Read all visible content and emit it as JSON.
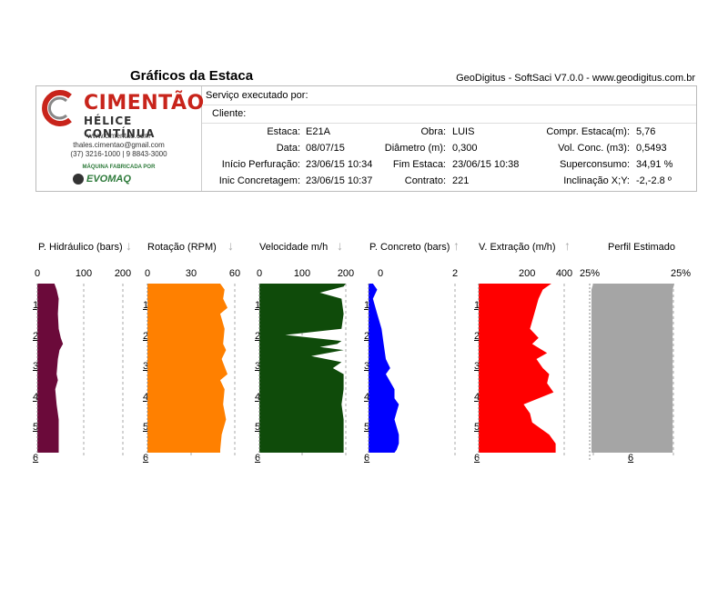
{
  "page_title": "Gráficos da Estaca",
  "software": "GeoDigitus - SoftSaci V7.0.0 - www.geodigitus.com.br",
  "logo": {
    "name": "CIMENTÃO",
    "subtitle": "HÉLICE CONTÍNUA",
    "site": "www.cimentao.com",
    "email": "thales.cimentao@gmail.com",
    "phone": "(37) 3216-1000 | 9 8843-3000",
    "maker": "MÁQUINA FABRICADA POR",
    "maker_brand": "EVOMAQ"
  },
  "header": {
    "servico_label": "Serviço executado por:",
    "cliente_label": "Cliente:",
    "estaca_label": "Estaca:",
    "estaca": "E21A",
    "obra_label": "Obra:",
    "obra": "LUIS",
    "compr_label": "Compr. Estaca(m):",
    "compr": "5,76",
    "data_label": "Data:",
    "data": "08/07/15",
    "diametro_label": "Diâmetro (m):",
    "diametro": "0,300",
    "volconc_label": "Vol. Conc. (m3):",
    "volconc": "0,5493",
    "inicio_perf_label": "Início Perfuração:",
    "inicio_perf": "23/06/15 10:34",
    "fim_label": "Fim Estaca:",
    "fim": "23/06/15 10:38",
    "superconsumo_label": "Superconsumo:",
    "superconsumo": "34,91 %",
    "inic_conc_label": "Inic Concretagem:",
    "inic_conc": "23/06/15 10:37",
    "contrato_label": "Contrato:",
    "contrato": "221",
    "inclinacao_label": "Inclinação X;Y:",
    "inclinacao": "-2,-2.8 º"
  },
  "chart_data": [
    {
      "type": "area",
      "title": "P. Hidráulico (bars)",
      "arrow": "down",
      "color": "#6b0a3a",
      "xlim": [
        0,
        200
      ],
      "ticks": [
        "0",
        "100",
        "200"
      ],
      "ylim": [
        0,
        6
      ],
      "depth": [
        0,
        0.2,
        0.5,
        1.0,
        1.5,
        1.8,
        2.0,
        2.2,
        2.5,
        3.0,
        3.2,
        3.5,
        4.0,
        4.5,
        5.0,
        5.5,
        5.6
      ],
      "values": [
        40,
        45,
        50,
        48,
        50,
        55,
        60,
        52,
        48,
        45,
        48,
        42,
        45,
        50,
        50,
        50,
        50
      ]
    },
    {
      "type": "area",
      "title": "Rotação (RPM)",
      "arrow": "down",
      "color": "#ff8000",
      "xlim": [
        0,
        60
      ],
      "ticks": [
        "0",
        "30",
        "60"
      ],
      "ylim": [
        0,
        6
      ],
      "depth": [
        0,
        0.2,
        0.5,
        0.8,
        1.0,
        1.5,
        2.0,
        2.2,
        2.5,
        3.0,
        3.2,
        3.5,
        4.0,
        4.5,
        5.0,
        5.5,
        5.6
      ],
      "values": [
        50,
        53,
        52,
        55,
        50,
        53,
        52,
        54,
        51,
        55,
        50,
        53,
        52,
        54,
        51,
        50,
        50
      ]
    },
    {
      "type": "area",
      "title": "Velocidade m/h",
      "arrow": "down",
      "color": "#0f4b0a",
      "xlim": [
        0,
        200
      ],
      "ticks": [
        "0",
        "100",
        "200"
      ],
      "ylim": [
        0,
        6
      ],
      "depth": [
        0,
        0.1,
        0.3,
        0.5,
        1.0,
        1.5,
        1.7,
        1.9,
        2.0,
        2.1,
        2.2,
        2.4,
        2.6,
        2.8,
        3.0,
        3.5,
        4.0,
        4.5,
        5.0,
        5.5,
        5.6
      ],
      "values": [
        200,
        195,
        140,
        190,
        195,
        190,
        60,
        190,
        180,
        140,
        195,
        120,
        190,
        170,
        195,
        195,
        190,
        195,
        195,
        195,
        195
      ]
    },
    {
      "type": "area",
      "title": "P. Concreto (bars)",
      "arrow": "up",
      "color": "#0000ff",
      "xlim": [
        0,
        2
      ],
      "ticks": [
        "0",
        "2"
      ],
      "ylim": [
        0,
        6
      ],
      "depth": [
        0,
        0.2,
        0.5,
        1.0,
        1.5,
        2.0,
        2.5,
        2.8,
        3.0,
        3.5,
        3.8,
        4.0,
        4.5,
        5.0,
        5.3,
        5.5,
        5.6
      ],
      "values": [
        0.1,
        0.2,
        0.1,
        0.2,
        0.3,
        0.35,
        0.4,
        0.5,
        0.4,
        0.6,
        0.6,
        0.7,
        0.6,
        0.7,
        0.7,
        0.65,
        0.6
      ]
    },
    {
      "type": "area",
      "title": "V. Extração (m/h)",
      "arrow": "up",
      "color": "#ff0000",
      "xlim": [
        0,
        400
      ],
      "ticks": [
        "200",
        "400"
      ],
      "ylim": [
        0,
        6
      ],
      "depth": [
        0,
        0.2,
        0.5,
        1.0,
        1.5,
        1.8,
        2.0,
        2.3,
        2.5,
        2.8,
        3.0,
        3.3,
        3.6,
        3.8,
        4.0,
        4.3,
        4.6,
        5.0,
        5.3,
        5.6
      ],
      "values": [
        340,
        300,
        280,
        260,
        240,
        280,
        250,
        320,
        270,
        300,
        330,
        320,
        350,
        280,
        210,
        240,
        250,
        330,
        360,
        360
      ]
    },
    {
      "type": "area",
      "title": "Perfil Estimado",
      "arrow": "",
      "color": "#a5a5a5",
      "xlim": [
        -25,
        25
      ],
      "ticks": [
        "25%",
        "25%"
      ],
      "ylim": [
        0,
        6
      ],
      "depth": [
        0,
        0.2,
        0.5,
        1.0,
        2.0,
        3.0,
        4.0,
        5.0,
        5.6
      ],
      "left": [
        -23,
        -24,
        -24,
        -24,
        -24,
        -24,
        -24,
        -24,
        -24
      ],
      "right": [
        23,
        22,
        22,
        22,
        22,
        22,
        22,
        22,
        22
      ]
    }
  ],
  "depth_labels": [
    "1",
    "2",
    "3",
    "4",
    "5",
    "6"
  ]
}
